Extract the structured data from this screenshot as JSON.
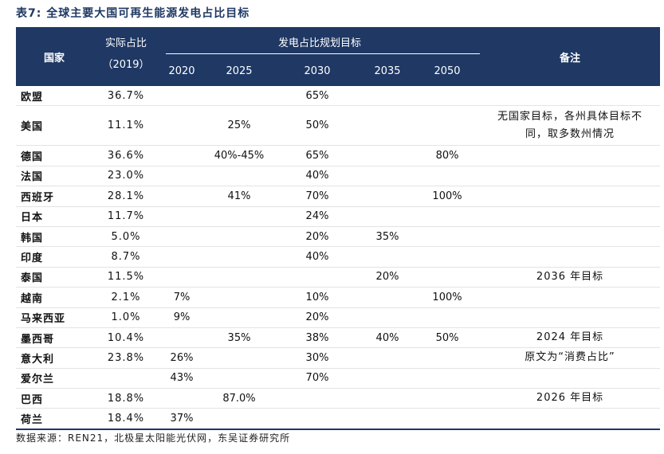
{
  "title": "表7: 全球主要大国可再生能源发电占比目标",
  "header": {
    "country": "国家",
    "actual_line1": "实际占比",
    "actual_line2": "（2019）",
    "plan_group": "发电占比规划目标",
    "years": [
      "2020",
      "2025",
      "2030",
      "2035",
      "2050"
    ],
    "note": "备注"
  },
  "rows": [
    {
      "country": "欧盟",
      "actual": "36.7%",
      "y2020": "",
      "y2025": "",
      "y2030": "65%",
      "y2035": "",
      "y2050": "",
      "note": ""
    },
    {
      "country": "美国",
      "actual": "11.1%",
      "y2020": "",
      "y2025": "25%",
      "y2030": "50%",
      "y2035": "",
      "y2050": "",
      "note": "无国家目标，各州具体目标不同，取多数州情况"
    },
    {
      "country": "德国",
      "actual": "36.6%",
      "y2020": "",
      "y2025": "40%-45%",
      "y2030": "65%",
      "y2035": "",
      "y2050": "80%",
      "note": ""
    },
    {
      "country": "法国",
      "actual": "23.0%",
      "y2020": "",
      "y2025": "",
      "y2030": "40%",
      "y2035": "",
      "y2050": "",
      "note": ""
    },
    {
      "country": "西班牙",
      "actual": "28.1%",
      "y2020": "",
      "y2025": "41%",
      "y2030": "70%",
      "y2035": "",
      "y2050": "100%",
      "note": ""
    },
    {
      "country": "日本",
      "actual": "11.7%",
      "y2020": "",
      "y2025": "",
      "y2030": "24%",
      "y2035": "",
      "y2050": "",
      "note": ""
    },
    {
      "country": "韩国",
      "actual": "5.0%",
      "y2020": "",
      "y2025": "",
      "y2030": "20%",
      "y2035": "35%",
      "y2050": "",
      "note": ""
    },
    {
      "country": "印度",
      "actual": "8.7%",
      "y2020": "",
      "y2025": "",
      "y2030": "40%",
      "y2035": "",
      "y2050": "",
      "note": ""
    },
    {
      "country": "泰国",
      "actual": "11.5%",
      "y2020": "",
      "y2025": "",
      "y2030": "",
      "y2035": "20%",
      "y2050": "",
      "note": "2036 年目标"
    },
    {
      "country": "越南",
      "actual": "2.1%",
      "y2020": "7%",
      "y2025": "",
      "y2030": "10%",
      "y2035": "",
      "y2050": "100%",
      "note": ""
    },
    {
      "country": "马来西亚",
      "actual": "1.0%",
      "y2020": "9%",
      "y2025": "",
      "y2030": "20%",
      "y2035": "",
      "y2050": "",
      "note": ""
    },
    {
      "country": "墨西哥",
      "actual": "10.4%",
      "y2020": "",
      "y2025": "35%",
      "y2030": "38%",
      "y2035": "40%",
      "y2050": "50%",
      "note": "2024 年目标"
    },
    {
      "country": "意大利",
      "actual": "23.8%",
      "y2020": "26%",
      "y2025": "",
      "y2030": "30%",
      "y2035": "",
      "y2050": "",
      "note": "原文为“消费占比”"
    },
    {
      "country": "爱尔兰",
      "actual": "",
      "y2020": "43%",
      "y2025": "",
      "y2030": "70%",
      "y2035": "",
      "y2050": "",
      "note": ""
    },
    {
      "country": "巴西",
      "actual": "18.8%",
      "y2020": "",
      "y2025": "87.0%",
      "y2030": "",
      "y2035": "",
      "y2050": "",
      "note": "2026 年目标"
    },
    {
      "country": "荷兰",
      "actual": "18.4%",
      "y2020": "37%",
      "y2025": "",
      "y2030": "",
      "y2035": "",
      "y2050": "",
      "note": ""
    }
  ],
  "source": "数据来源：REN21，北极星太阳能光伏网，东吴证券研究所",
  "colors": {
    "header_bg": "#1f3864",
    "title": "#1f3864"
  }
}
